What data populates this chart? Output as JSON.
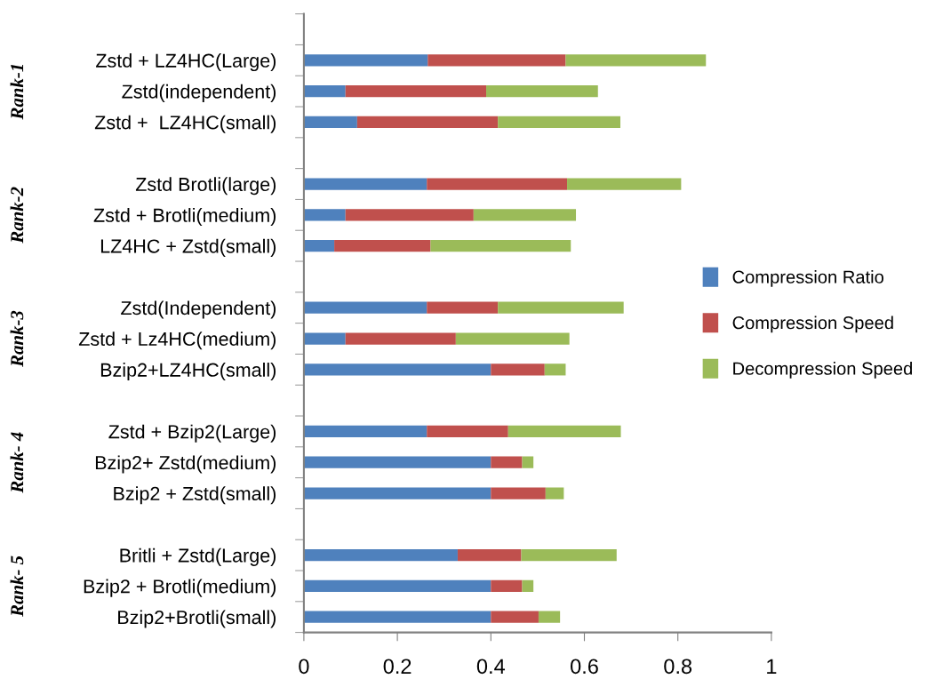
{
  "chart_data": {
    "type": "bar",
    "orientation": "horizontal",
    "stacked": true,
    "categories": [
      "Zstd + LZ4HC(Large)",
      "Zstd(independent)",
      "Zstd +  LZ4HC(small)",
      null,
      "Zstd Brotli(large)",
      "Zstd + Brotli(medium)",
      "LZ4HC + Zstd(small)",
      null,
      "Zstd(Independent)",
      "Zstd + Lz4HC(medium)",
      "Bzip2+LZ4HC(small)",
      null,
      "Zstd + Bzip2(Large)",
      "Bzip2+ Zstd(medium)",
      "Bzip2 + Zstd(small)",
      null,
      "Britli + Zstd(Large)",
      "Bzip2 + Brotli(medium)",
      "Bzip2+Brotli(small)"
    ],
    "series": [
      {
        "name": "Compression Ratio",
        "color": "#4f81bd",
        "values": [
          0.265,
          0.089,
          0.114,
          null,
          0.263,
          0.089,
          0.065,
          null,
          0.263,
          0.089,
          0.4,
          null,
          0.263,
          0.4,
          0.4,
          null,
          0.329,
          0.4,
          0.4
        ]
      },
      {
        "name": "Compression Speed",
        "color": "#c0504d",
        "values": [
          0.295,
          0.301,
          0.301,
          null,
          0.3,
          0.274,
          0.206,
          null,
          0.152,
          0.236,
          0.115,
          null,
          0.174,
          0.067,
          0.117,
          null,
          0.136,
          0.067,
          0.102
        ]
      },
      {
        "name": "Decompression Speed",
        "color": "#9bbb59",
        "values": [
          0.3,
          0.239,
          0.262,
          null,
          0.244,
          0.219,
          0.3,
          null,
          0.269,
          0.243,
          0.045,
          null,
          0.241,
          0.024,
          0.039,
          null,
          0.204,
          0.024,
          0.046
        ]
      }
    ],
    "xlim": [
      0,
      1
    ],
    "xticks": [
      0,
      0.2,
      0.4,
      0.6,
      0.8,
      1
    ],
    "annotations": [
      "Rank-1",
      "Rank-2",
      "Rank-3",
      "Rank- 4",
      "Rank- 5"
    ],
    "legend": "right",
    "grid": false
  }
}
